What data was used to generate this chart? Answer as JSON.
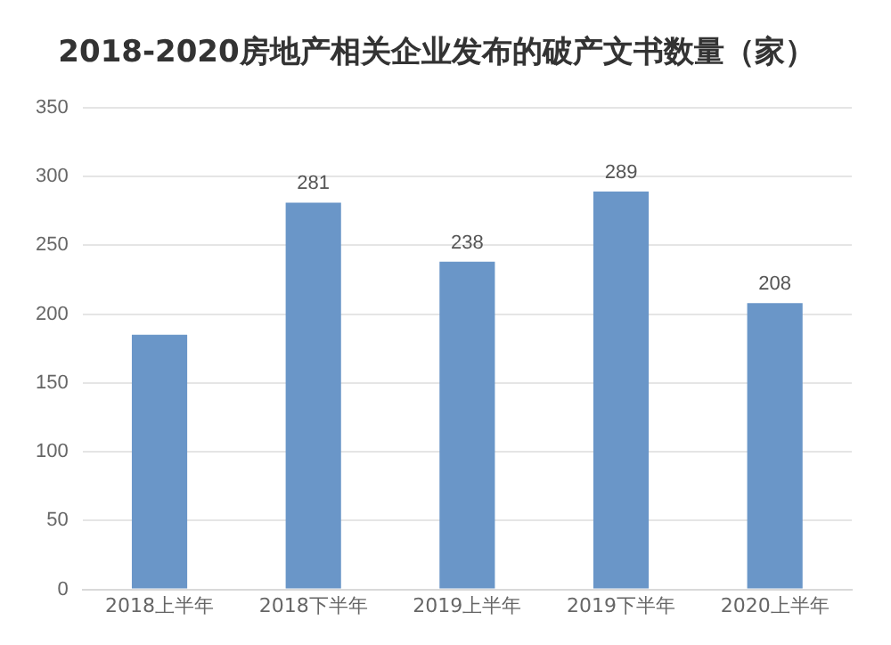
{
  "chart_data": {
    "type": "bar",
    "title": "2018-2020房地产相关企业发布的破产文书数量（家）",
    "categories": [
      "2018上半年",
      "2018下半年",
      "2019上半年",
      "2019下半年",
      "2020上半年"
    ],
    "values": [
      185,
      281,
      238,
      289,
      208
    ],
    "value_labels": [
      null,
      "281",
      "238",
      "289",
      "208"
    ],
    "color": "#6a96c8",
    "ylim": [
      0,
      350
    ],
    "yticks": [
      0,
      50,
      100,
      150,
      200,
      250,
      300,
      350
    ],
    "grid": "y",
    "legend": false
  }
}
